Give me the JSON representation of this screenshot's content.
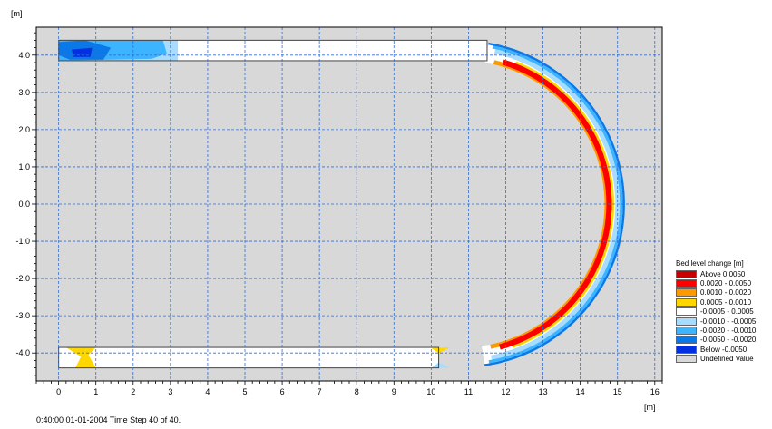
{
  "chart_data": {
    "type": "heatmap",
    "x_unit": "[m]",
    "y_unit": "[m]",
    "xlim": [
      -0.6,
      16.2
    ],
    "ylim": [
      -4.75,
      4.75
    ],
    "x_ticks": [
      0,
      1,
      2,
      3,
      4,
      5,
      6,
      7,
      8,
      9,
      10,
      11,
      12,
      13,
      14,
      15,
      16
    ],
    "y_ticks": [
      {
        "value": 4,
        "label": "4.0"
      },
      {
        "value": 3,
        "label": "3.0"
      },
      {
        "value": 2,
        "label": "2.0"
      },
      {
        "value": 1,
        "label": "1.0"
      },
      {
        "value": 0,
        "label": "0.0"
      },
      {
        "value": -1,
        "label": "-1.0"
      },
      {
        "value": -2,
        "label": "-2.0"
      },
      {
        "value": -3,
        "label": "-3.0"
      },
      {
        "value": -4,
        "label": "-4.0"
      }
    ],
    "grid": true,
    "geometry": {
      "top_channel": {
        "x": [
          0,
          11.5
        ],
        "y": [
          3.85,
          4.4
        ]
      },
      "bottom_channel": {
        "x": [
          0,
          10.2
        ],
        "y": [
          -4.4,
          -3.85
        ]
      },
      "bend_center": [
        10.8,
        0
      ],
      "bend_radius_inner": 3.85,
      "bend_radius_outer": 4.4
    },
    "legend": {
      "title": "Bed level change [m]",
      "entries": [
        {
          "label": "Above     0.0050",
          "color": "#c80000"
        },
        {
          "label": "0.0020 -   0.0050",
          "color": "#ff0000"
        },
        {
          "label": "0.0010 -   0.0020",
          "color": "#ff9900"
        },
        {
          "label": "0.0005 -   0.0010",
          "color": "#ffd700"
        },
        {
          "label": "-0.0005 -   0.0005",
          "color": "#ffffff"
        },
        {
          "label": "-0.0010 - -0.0005",
          "color": "#a8dcff"
        },
        {
          "label": "-0.0020 - -0.0010",
          "color": "#3cb4ff"
        },
        {
          "label": "-0.0050 - -0.0020",
          "color": "#0a78e6"
        },
        {
          "label": "Below     -0.0050",
          "color": "#0030e0"
        },
        {
          "label": "Undefined Value",
          "color": "#d8d8d8"
        }
      ]
    }
  },
  "status_bar": {
    "text": "0:40:00 01-01-2004  Time Step 40 of 40."
  }
}
